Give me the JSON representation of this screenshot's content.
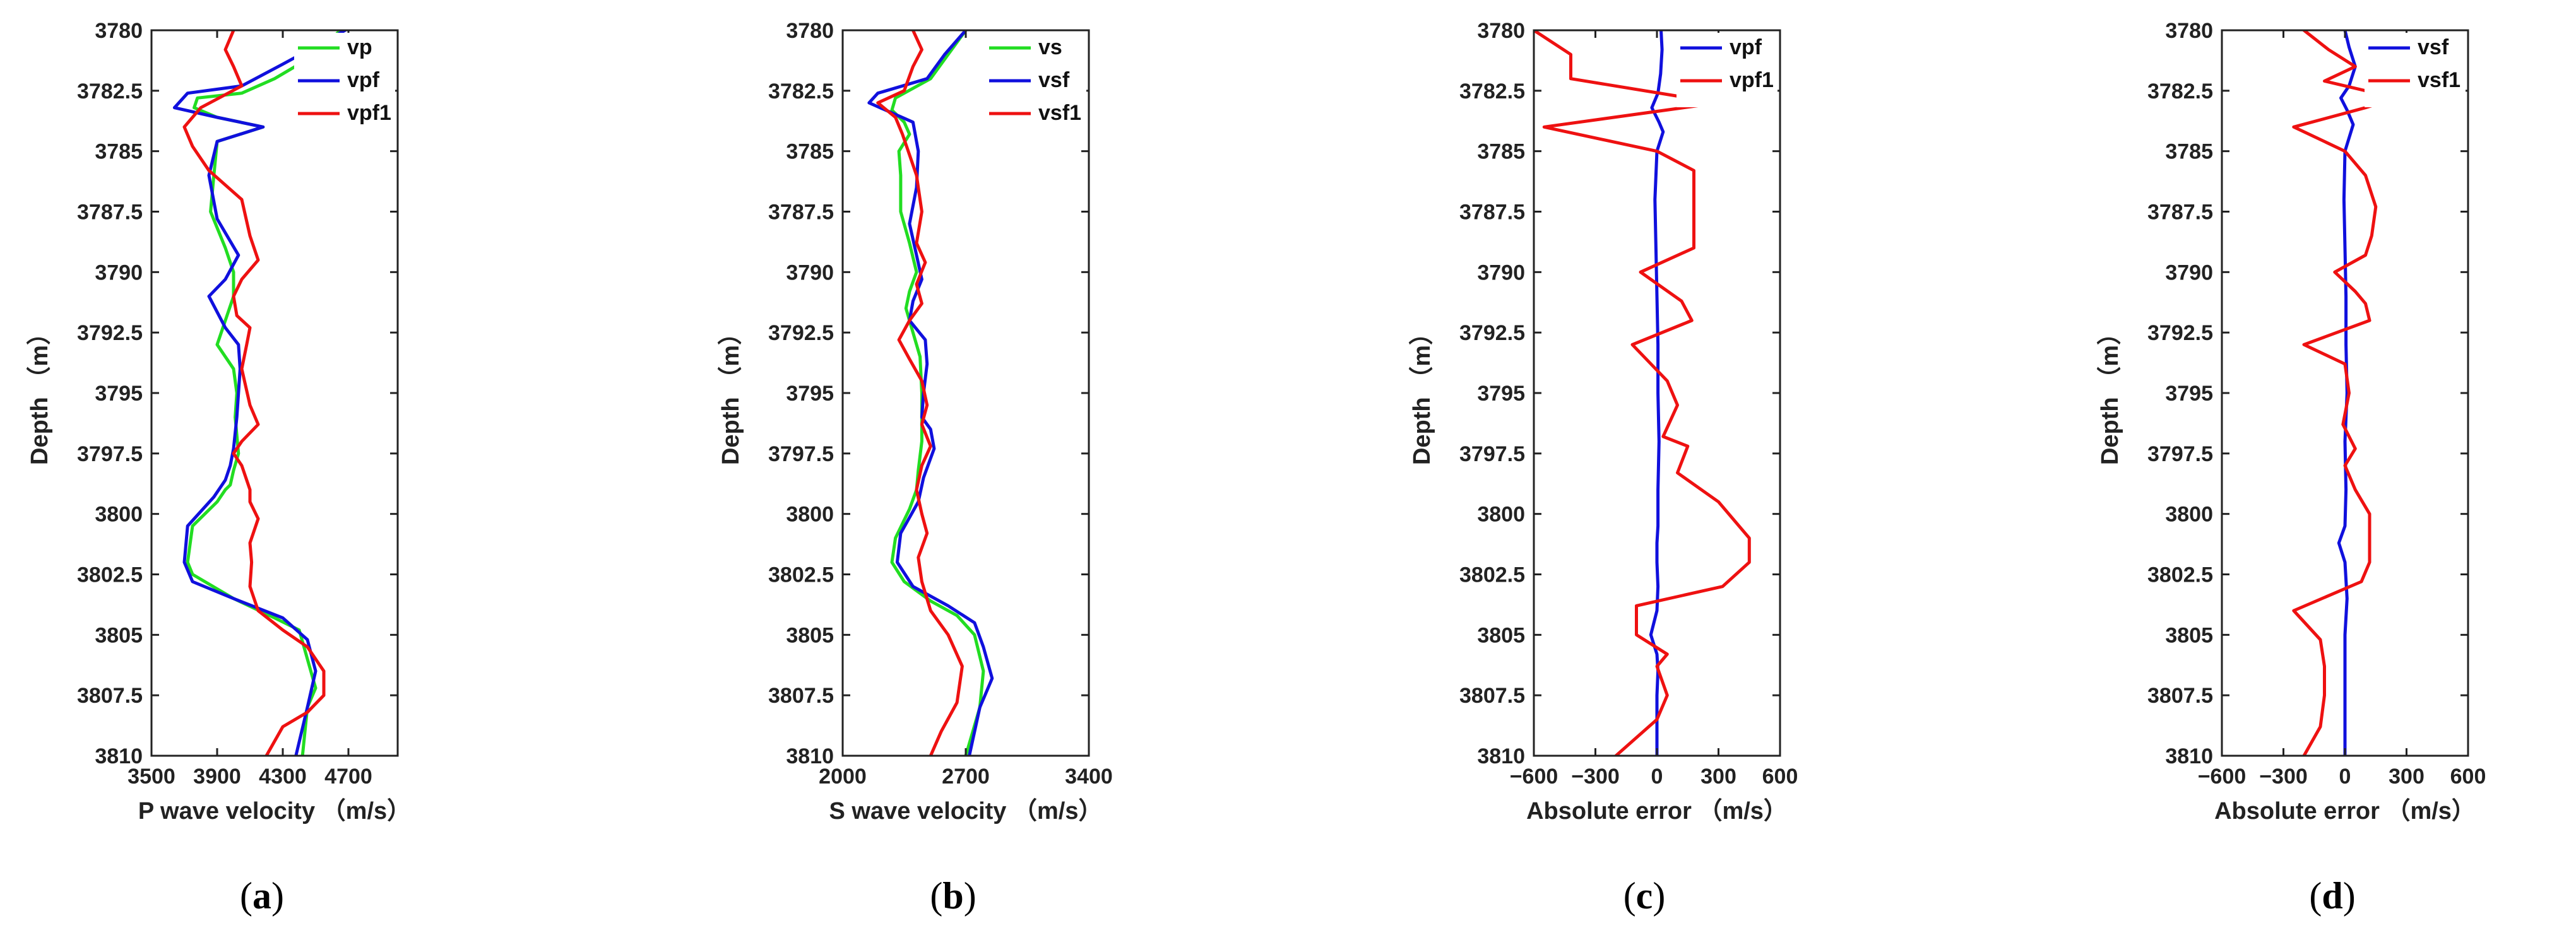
{
  "figure": {
    "panel_labels": [
      "(a)",
      "(b)",
      "(c)",
      "(d)"
    ],
    "colors": {
      "green": "#22dd22",
      "blue": "#1010dd",
      "red": "#ee1111",
      "axis": "#222222"
    }
  },
  "chart_data": [
    {
      "type": "line",
      "panel": "(a)",
      "xlabel": "P wave velocity （m/s）",
      "ylabel": "Depth （m）",
      "xlim": [
        3500,
        5000
      ],
      "ylim": [
        3780,
        3810
      ],
      "y_inverted": true,
      "xticks": [
        3500,
        3900,
        4300,
        4700
      ],
      "yticks": [
        3780,
        3782.5,
        3785,
        3787.5,
        3790,
        3792.5,
        3795,
        3797.5,
        3800,
        3802.5,
        3805,
        3807.5,
        3810
      ],
      "ytick_labels": [
        "3780",
        "3782.5",
        "3785",
        "3787.5",
        "3790",
        "3792.5",
        "3795",
        "3797.5",
        "3800",
        "3802.5",
        "3805",
        "3807.5",
        "3810"
      ],
      "xtick_labels": [
        "3500",
        "3900",
        "4300",
        "4700"
      ],
      "legend": {
        "position": "top-right",
        "entries": [
          "vp",
          "vpf",
          "vpf1"
        ]
      },
      "series": [
        {
          "name": "vp",
          "color": "#22dd22",
          "x": [
            4650,
            4500,
            4250,
            4050,
            3780,
            3760,
            3900,
            4180,
            3900,
            3880,
            3860,
            3950,
            4000,
            4000,
            3950,
            3900,
            4000,
            4020,
            4010,
            4030,
            4000,
            3980,
            3950,
            3900,
            3750,
            3720,
            3750,
            4000,
            4250,
            4400,
            4450,
            4500,
            4450,
            4420
          ],
          "y": [
            3780,
            3781,
            3782,
            3782.6,
            3782.8,
            3783.2,
            3783.6,
            3784,
            3784.6,
            3786,
            3787.5,
            3789,
            3790,
            3791,
            3792,
            3793,
            3794,
            3795,
            3796,
            3797.5,
            3798.2,
            3798.8,
            3799,
            3799.5,
            3800.5,
            3802,
            3802.5,
            3803.5,
            3804.3,
            3804.8,
            3806,
            3807.2,
            3808,
            3810
          ]
        },
        {
          "name": "vpf",
          "color": "#1010dd",
          "x": [
            4680,
            4300,
            4050,
            3720,
            3640,
            3900,
            4180,
            3900,
            3850,
            3900,
            4030,
            3950,
            3850,
            3950,
            4030,
            4040,
            4020,
            4000,
            3980,
            3950,
            3880,
            3720,
            3700,
            3750,
            4000,
            4300,
            4450,
            4500,
            4450,
            4380
          ],
          "y": [
            3780,
            3781.4,
            3782.3,
            3782.6,
            3783.2,
            3783.6,
            3784,
            3784.6,
            3786,
            3787.8,
            3789.3,
            3790.3,
            3791,
            3792.3,
            3793,
            3794,
            3796,
            3797.3,
            3798,
            3798.6,
            3799.3,
            3800.5,
            3802,
            3802.8,
            3803.5,
            3804.3,
            3805.2,
            3806.5,
            3808,
            3810
          ]
        },
        {
          "name": "vpf1",
          "color": "#ee1111",
          "x": [
            4000,
            3950,
            4000,
            4050,
            3800,
            3700,
            3750,
            3850,
            4050,
            4100,
            4150,
            4050,
            4000,
            4020,
            4100,
            4080,
            4050,
            4100,
            4150,
            4050,
            4000,
            4050,
            4100,
            4100,
            4150,
            4100,
            4110,
            4100,
            4150,
            4300,
            4450,
            4550,
            4550,
            4450,
            4300,
            4200
          ],
          "y": [
            3780,
            3780.8,
            3781.5,
            3782.3,
            3783.2,
            3784,
            3784.8,
            3785.8,
            3787,
            3788.5,
            3789.5,
            3790.3,
            3791,
            3791.8,
            3792.3,
            3793,
            3794,
            3795.5,
            3796.3,
            3797,
            3797.5,
            3798,
            3799,
            3799.5,
            3800.2,
            3801.2,
            3802,
            3803,
            3804,
            3804.8,
            3805.5,
            3806.5,
            3807.5,
            3808.2,
            3808.8,
            3810
          ]
        }
      ]
    },
    {
      "type": "line",
      "panel": "(b)",
      "xlabel": "S wave velocity （m/s）",
      "ylabel": "Depth （m）",
      "xlim": [
        2000,
        3400
      ],
      "ylim": [
        3780,
        3810
      ],
      "y_inverted": true,
      "xticks": [
        2000,
        2700,
        3400
      ],
      "xtick_labels": [
        "2000",
        "2700",
        "3400"
      ],
      "yticks": [
        3780,
        3782.5,
        3785,
        3787.5,
        3790,
        3792.5,
        3795,
        3797.5,
        3800,
        3802.5,
        3805,
        3807.5,
        3810
      ],
      "ytick_labels": [
        "3780",
        "3782.5",
        "3785",
        "3787.5",
        "3790",
        "3792.5",
        "3795",
        "3797.5",
        "3800",
        "3802.5",
        "3805",
        "3807.5",
        "3810"
      ],
      "legend": {
        "position": "top-right",
        "entries": [
          "vs",
          "vsf",
          "vsf1"
        ]
      },
      "series": [
        {
          "name": "vs",
          "color": "#22dd22",
          "x": [
            2700,
            2600,
            2500,
            2300,
            2280,
            2350,
            2380,
            2320,
            2330,
            2330,
            2380,
            2420,
            2380,
            2360,
            2400,
            2440,
            2450,
            2450,
            2430,
            2420,
            2380,
            2300,
            2280,
            2350,
            2500,
            2650,
            2750,
            2800,
            2780,
            2700
          ],
          "y": [
            3780,
            3781,
            3782,
            3782.8,
            3783.3,
            3783.8,
            3784.3,
            3785,
            3786,
            3787.5,
            3788.8,
            3790,
            3790.8,
            3791.5,
            3792.5,
            3793.5,
            3795,
            3797,
            3798.2,
            3799,
            3799.8,
            3801,
            3802,
            3802.8,
            3803.6,
            3804.2,
            3805,
            3806.5,
            3808,
            3810
          ]
        },
        {
          "name": "vsf",
          "color": "#1010dd",
          "x": [
            2700,
            2580,
            2480,
            2200,
            2150,
            2400,
            2430,
            2420,
            2380,
            2420,
            2450,
            2400,
            2380,
            2470,
            2480,
            2460,
            2450,
            2500,
            2520,
            2460,
            2430,
            2330,
            2310,
            2400,
            2600,
            2750,
            2800,
            2850,
            2780,
            2720
          ],
          "y": [
            3780,
            3781,
            3782,
            3782.6,
            3783,
            3783.8,
            3785,
            3786.5,
            3788,
            3789.3,
            3790.3,
            3791.2,
            3792,
            3792.8,
            3793.8,
            3795,
            3796,
            3796.5,
            3797.3,
            3798.5,
            3799.5,
            3800.8,
            3802,
            3803,
            3803.8,
            3804.5,
            3805.5,
            3806.8,
            3808,
            3810
          ]
        },
        {
          "name": "vsf1",
          "color": "#ee1111",
          "x": [
            2400,
            2450,
            2400,
            2350,
            2200,
            2300,
            2340,
            2420,
            2450,
            2420,
            2470,
            2420,
            2450,
            2380,
            2320,
            2380,
            2450,
            2480,
            2450,
            2500,
            2450,
            2420,
            2450,
            2480,
            2430,
            2450,
            2500,
            2600,
            2680,
            2650,
            2560,
            2500
          ],
          "y": [
            3780,
            3780.8,
            3781.5,
            3782.5,
            3783,
            3783.6,
            3784.3,
            3786,
            3787.5,
            3788.8,
            3789.6,
            3790.5,
            3791.3,
            3792,
            3792.8,
            3793.6,
            3794.5,
            3795.5,
            3796.3,
            3797.2,
            3798,
            3799,
            3800,
            3800.8,
            3801.8,
            3802.8,
            3804,
            3805,
            3806.3,
            3807.8,
            3809,
            3810
          ]
        }
      ]
    },
    {
      "type": "line",
      "panel": "(c)",
      "xlabel": "Absolute error （m/s）",
      "ylabel": "Depth （m）",
      "xlim": [
        -600,
        600
      ],
      "ylim": [
        3780,
        3810
      ],
      "y_inverted": true,
      "xticks": [
        -600,
        -300,
        0,
        300,
        600
      ],
      "xtick_labels": [
        "−600",
        "−300",
        "0",
        "300",
        "600"
      ],
      "yticks": [
        3780,
        3782.5,
        3785,
        3787.5,
        3790,
        3792.5,
        3795,
        3797.5,
        3800,
        3802.5,
        3805,
        3807.5,
        3810
      ],
      "ytick_labels": [
        "3780",
        "3782.5",
        "3785",
        "3787.5",
        "3790",
        "3792.5",
        "3795",
        "3797.5",
        "3800",
        "3802.5",
        "3805",
        "3807.5",
        "3810"
      ],
      "legend": {
        "position": "top-right",
        "entries": [
          "vpf",
          "vpf1"
        ]
      },
      "series": [
        {
          "name": "vpf",
          "color": "#1010dd",
          "x": [
            20,
            25,
            18,
            5,
            -25,
            10,
            30,
            0,
            -10,
            -5,
            0,
            5,
            5,
            10,
            5,
            5,
            0,
            0,
            5,
            0,
            -30,
            0,
            5,
            0,
            0,
            0
          ],
          "y": [
            3780,
            3780.8,
            3781.8,
            3782.6,
            3783.2,
            3783.8,
            3784.2,
            3785,
            3787,
            3789,
            3791,
            3793,
            3795,
            3797,
            3799,
            3800.5,
            3801.2,
            3802,
            3803,
            3804,
            3805,
            3805.8,
            3806.5,
            3807.5,
            3808.5,
            3810
          ]
        },
        {
          "name": "vpf1",
          "color": "#ee1111",
          "x": [
            -600,
            -420,
            -420,
            300,
            -550,
            0,
            180,
            180,
            180,
            180,
            -80,
            120,
            170,
            -120,
            50,
            100,
            30,
            150,
            100,
            300,
            450,
            450,
            320,
            -100,
            -100,
            50,
            0,
            50,
            0,
            -200
          ],
          "y": [
            3780,
            3781,
            3782,
            3783,
            3784,
            3785,
            3785.8,
            3787,
            3788,
            3789,
            3790,
            3791.2,
            3792,
            3793,
            3794.5,
            3795.5,
            3796.8,
            3797.2,
            3798.3,
            3799.5,
            3801,
            3802,
            3803,
            3803.8,
            3805,
            3805.8,
            3806.3,
            3807.5,
            3808.5,
            3810
          ]
        }
      ]
    },
    {
      "type": "line",
      "panel": "(d)",
      "xlabel": "Absolute error （m/s）",
      "ylabel": "Depth （m）",
      "xlim": [
        -600,
        600
      ],
      "ylim": [
        3780,
        3810
      ],
      "y_inverted": true,
      "xticks": [
        -600,
        -300,
        0,
        300,
        600
      ],
      "xtick_labels": [
        "−600",
        "−300",
        "0",
        "300",
        "600"
      ],
      "yticks": [
        3780,
        3782.5,
        3785,
        3787.5,
        3790,
        3792.5,
        3795,
        3797.5,
        3800,
        3802.5,
        3805,
        3807.5,
        3810
      ],
      "ytick_labels": [
        "3780",
        "3782.5",
        "3785",
        "3787.5",
        "3790",
        "3792.5",
        "3795",
        "3797.5",
        "3800",
        "3802.5",
        "3805",
        "3807.5",
        "3810"
      ],
      "legend": {
        "position": "top-right",
        "entries": [
          "vsf",
          "vsf1"
        ]
      },
      "series": [
        {
          "name": "vsf",
          "color": "#1010dd",
          "x": [
            0,
            20,
            50,
            20,
            -20,
            10,
            40,
            0,
            -5,
            0,
            5,
            5,
            10,
            0,
            5,
            0,
            -30,
            0,
            10,
            0,
            0,
            0,
            0
          ],
          "y": [
            3780,
            3780.7,
            3781.5,
            3782.3,
            3782.8,
            3783.3,
            3783.9,
            3785,
            3787,
            3789,
            3791,
            3793,
            3795,
            3797,
            3799,
            3800.5,
            3801.2,
            3802,
            3803.5,
            3805,
            3806.5,
            3808,
            3810
          ]
        },
        {
          "name": "vsf1",
          "color": "#ee1111",
          "x": [
            -200,
            -80,
            50,
            -100,
            250,
            100,
            -250,
            0,
            100,
            150,
            130,
            100,
            -50,
            50,
            100,
            120,
            -200,
            0,
            20,
            -10,
            50,
            0,
            50,
            120,
            120,
            80,
            -250,
            -120,
            -100,
            -100,
            -120,
            -200
          ],
          "y": [
            3780,
            3780.8,
            3781.5,
            3782.1,
            3782.8,
            3783.2,
            3784,
            3785,
            3786,
            3787.3,
            3788.5,
            3789.3,
            3790,
            3790.8,
            3791.3,
            3792,
            3793,
            3793.8,
            3795,
            3796.3,
            3797.3,
            3798,
            3799,
            3800,
            3802,
            3802.8,
            3804,
            3805.2,
            3806.3,
            3807.5,
            3808.8,
            3810
          ]
        }
      ]
    }
  ]
}
